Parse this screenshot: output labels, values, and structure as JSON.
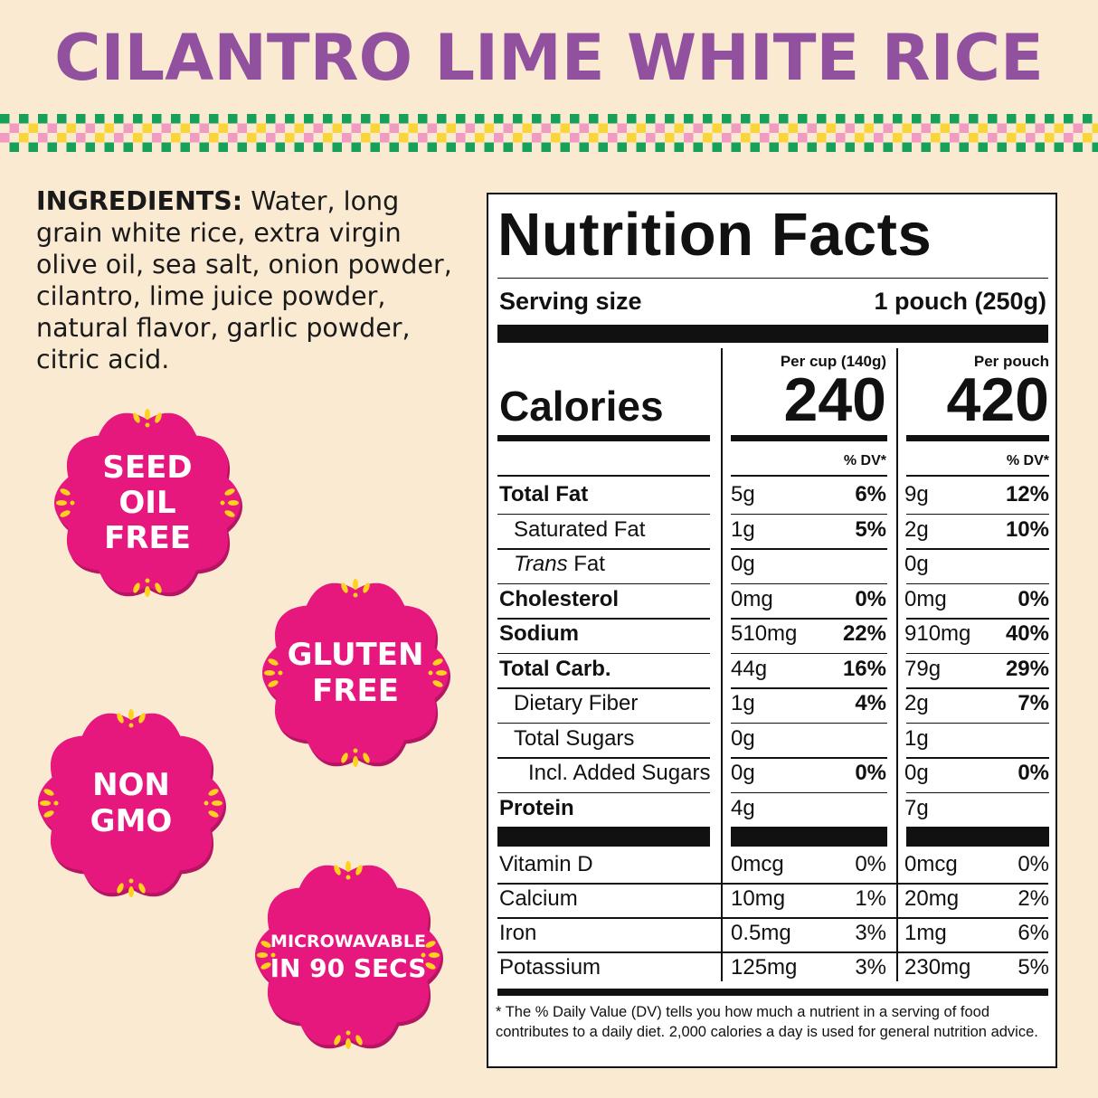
{
  "title": "CILANTRO LIME WHITE RICE",
  "ingredients": {
    "label": "INGREDIENTS:",
    "text": "Water, long grain white rice, extra virgin olive oil, sea salt, onion powder, cilantro, lime juice powder, natural flavor, garlic powder, citric acid."
  },
  "badges": [
    {
      "lines": [
        "SEED",
        "OIL",
        "FREE"
      ]
    },
    {
      "lines": [
        "GLUTEN",
        "FREE"
      ]
    },
    {
      "lines": [
        "NON",
        "GMO"
      ]
    },
    {
      "lines": [
        "MICROWAVABLE",
        "IN 90 SECS"
      ]
    }
  ],
  "colors": {
    "title": "#91519f",
    "background": "#fbead2",
    "badge": "#e6177d",
    "badge_accent": "#ffd21e",
    "check_green": "#16a05a",
    "check_pink": "#f19bc3",
    "check_yellow": "#f9d53a"
  },
  "nutrition": {
    "heading": "Nutrition Facts",
    "serving_label": "Serving size",
    "serving_value": "1 pouch (250g)",
    "calories_label": "Calories",
    "col1_header": "Per cup (140g)",
    "col2_header": "Per pouch",
    "col1_calories": "240",
    "col2_calories": "420",
    "dv_label": "% DV*",
    "rows": [
      {
        "label": "Total Fat",
        "v1": "5g",
        "p1": "6%",
        "v2": "9g",
        "p2": "12%"
      },
      {
        "label": "Saturated Fat",
        "v1": "1g",
        "p1": "5%",
        "v2": "2g",
        "p2": "10%"
      },
      {
        "label_italic": "Trans",
        "label": " Fat",
        "v1": "0g",
        "p1": "",
        "v2": "0g",
        "p2": ""
      },
      {
        "label": "Cholesterol",
        "v1": "0mg",
        "p1": "0%",
        "v2": "0mg",
        "p2": "0%"
      },
      {
        "label": "Sodium",
        "v1": "510mg",
        "p1": "22%",
        "v2": "910mg",
        "p2": "40%"
      },
      {
        "label": "Total Carb.",
        "v1": "44g",
        "p1": "16%",
        "v2": "79g",
        "p2": "29%"
      },
      {
        "label": "Dietary Fiber",
        "v1": "1g",
        "p1": "4%",
        "v2": "2g",
        "p2": "7%"
      },
      {
        "label": "Total Sugars",
        "v1": "0g",
        "p1": "",
        "v2": "1g",
        "p2": ""
      },
      {
        "label": "Incl. Added Sugars",
        "v1": "0g",
        "p1": "0%",
        "v2": "0g",
        "p2": "0%"
      },
      {
        "label": "Protein",
        "v1": "4g",
        "p1": "",
        "v2": "7g",
        "p2": ""
      }
    ],
    "vitamins": [
      {
        "label": "Vitamin D",
        "v1": "0mcg",
        "p1": "0%",
        "v2": "0mcg",
        "p2": "0%"
      },
      {
        "label": "Calcium",
        "v1": "10mg",
        "p1": "1%",
        "v2": "20mg",
        "p2": "2%"
      },
      {
        "label": "Iron",
        "v1": "0.5mg",
        "p1": "3%",
        "v2": "1mg",
        "p2": "6%"
      },
      {
        "label": "Potassium",
        "v1": "125mg",
        "p1": "3%",
        "v2": "230mg",
        "p2": "5%"
      }
    ],
    "footnote": "* The % Daily Value (DV) tells you how much a nutrient in a serving of food contributes to a daily diet. 2,000 calories a day is used for general nutrition advice."
  }
}
